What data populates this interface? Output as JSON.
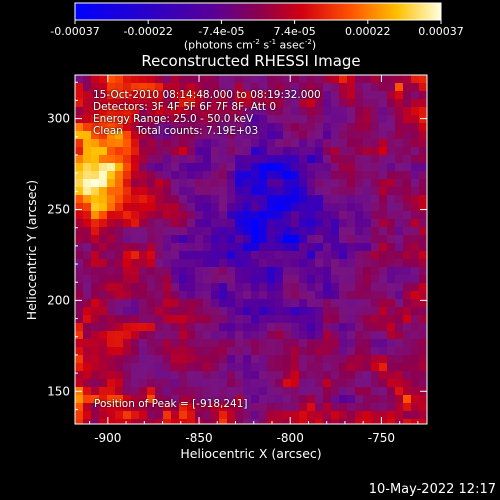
{
  "colorbar": {
    "tick_labels": [
      "-0.00037",
      "-0.00022",
      "-7.4e-05",
      "7.4e-05",
      "0.00022",
      "0.00037"
    ],
    "unit_prefix": "(photons cm",
    "unit_exp1": "-2",
    "unit_mid": " s",
    "unit_exp2": "-1",
    "unit_suffix": " asec",
    "unit_exp3": "-2",
    "unit_close": ")",
    "range": [
      -0.00037,
      0.00037
    ]
  },
  "chart_data": {
    "type": "heatmap",
    "title": "Reconstructed RHESSI Image",
    "xlabel": "Heliocentric X (arcsec)",
    "ylabel": "Heliocentric Y (arcsec)",
    "xlim": [
      -918,
      -725
    ],
    "ylim": [
      132,
      324
    ],
    "x_ticks": [
      -900,
      -850,
      -800,
      -750
    ],
    "y_ticks": [
      150,
      200,
      250,
      300
    ],
    "x_tick_labels": [
      "-900",
      "-850",
      "-800",
      "-750"
    ],
    "y_tick_labels": [
      "150",
      "200",
      "250",
      "300"
    ],
    "colormap": "rainbow-blue-purple-red-yellow-white",
    "info": {
      "time": "15-Oct-2010 08:14:48.000 to 08:19:32.000",
      "detectors": "Detectors: 3F 4F 5F 6F 7F 8F, Att 0",
      "energy": "Energy Range: 25.0 - 50.0 keV",
      "method": "Clean    Total counts: 7.19E+03"
    },
    "peak": "Position of Peak = [-918,241]",
    "peak_position": [
      -918,
      241
    ]
  },
  "footer": {
    "timestamp": "10-May-2022 12:17"
  }
}
